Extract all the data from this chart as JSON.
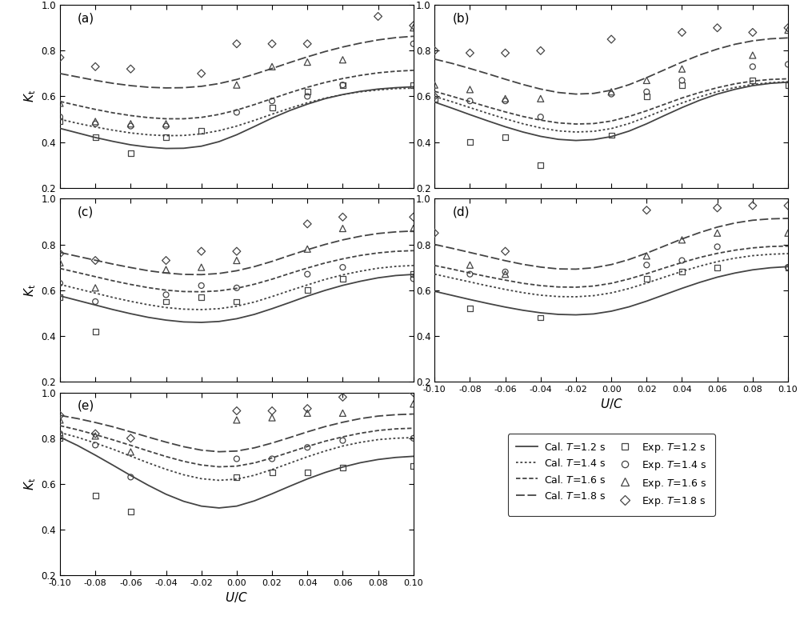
{
  "x_fine": [
    -0.1,
    -0.09,
    -0.08,
    -0.07,
    -0.06,
    -0.05,
    -0.04,
    -0.03,
    -0.02,
    -0.01,
    0.0,
    0.01,
    0.02,
    0.03,
    0.04,
    0.05,
    0.06,
    0.07,
    0.08,
    0.09,
    0.1
  ],
  "ylim": [
    0.2,
    1.0
  ],
  "yticks": [
    0.2,
    0.4,
    0.6,
    0.8,
    1.0
  ],
  "xlim": [
    -0.1,
    0.1
  ],
  "xticks": [
    -0.1,
    -0.08,
    -0.06,
    -0.04,
    -0.02,
    0.0,
    0.02,
    0.04,
    0.06,
    0.08,
    0.1
  ],
  "xtick_labels": [
    "-0.10",
    "-0.08",
    "-0.06",
    "-0.04",
    "-0.02",
    "0.00",
    "0.02",
    "0.04",
    "0.06",
    "0.08",
    "0.10"
  ],
  "panel_labels": [
    "(a)",
    "(b)",
    "(c)",
    "(d)",
    "(e)"
  ],
  "cal_T12_a": [
    0.46,
    0.44,
    0.42,
    0.403,
    0.388,
    0.378,
    0.372,
    0.373,
    0.382,
    0.402,
    0.432,
    0.468,
    0.505,
    0.538,
    0.566,
    0.59,
    0.608,
    0.622,
    0.632,
    0.638,
    0.642
  ],
  "cal_T14_a": [
    0.5,
    0.482,
    0.466,
    0.452,
    0.44,
    0.432,
    0.428,
    0.429,
    0.436,
    0.45,
    0.47,
    0.495,
    0.522,
    0.548,
    0.572,
    0.592,
    0.608,
    0.62,
    0.628,
    0.634,
    0.636
  ],
  "cal_T16_a": [
    0.578,
    0.56,
    0.543,
    0.528,
    0.516,
    0.507,
    0.502,
    0.502,
    0.508,
    0.521,
    0.54,
    0.564,
    0.59,
    0.616,
    0.64,
    0.661,
    0.678,
    0.692,
    0.703,
    0.71,
    0.714
  ],
  "cal_T18_a": [
    0.7,
    0.685,
    0.67,
    0.657,
    0.647,
    0.64,
    0.637,
    0.638,
    0.644,
    0.656,
    0.674,
    0.697,
    0.722,
    0.748,
    0.773,
    0.796,
    0.816,
    0.833,
    0.847,
    0.857,
    0.863
  ],
  "exp_T12_a_x": [
    -0.1,
    -0.08,
    -0.06,
    -0.04,
    -0.02,
    0.02,
    0.04,
    0.06,
    0.1
  ],
  "exp_T12_a": [
    0.49,
    0.42,
    0.35,
    0.42,
    0.45,
    0.55,
    0.62,
    0.65,
    0.65
  ],
  "exp_T14_a_x": [
    -0.1,
    -0.08,
    -0.06,
    -0.04,
    0.0,
    0.02,
    0.04,
    0.06,
    0.1
  ],
  "exp_T14_a": [
    0.51,
    0.48,
    0.47,
    0.47,
    0.53,
    0.58,
    0.6,
    0.65,
    0.83
  ],
  "exp_T16_a_x": [
    -0.1,
    -0.08,
    -0.06,
    -0.04,
    0.0,
    0.02,
    0.04,
    0.06,
    0.1
  ],
  "exp_T16_a": [
    0.57,
    0.49,
    0.48,
    0.48,
    0.65,
    0.73,
    0.75,
    0.76,
    0.9
  ],
  "exp_T18_a_x": [
    -0.1,
    -0.08,
    -0.06,
    -0.02,
    0.0,
    0.02,
    0.04,
    0.08,
    0.1
  ],
  "exp_T18_a": [
    0.77,
    0.73,
    0.72,
    0.7,
    0.83,
    0.83,
    0.83,
    0.95,
    0.91
  ],
  "cal_T12_b": [
    0.575,
    0.548,
    0.52,
    0.493,
    0.467,
    0.444,
    0.425,
    0.412,
    0.407,
    0.411,
    0.424,
    0.448,
    0.48,
    0.516,
    0.551,
    0.583,
    0.61,
    0.631,
    0.647,
    0.657,
    0.662
  ],
  "cal_T14_b": [
    0.6,
    0.576,
    0.551,
    0.526,
    0.502,
    0.48,
    0.462,
    0.449,
    0.444,
    0.447,
    0.459,
    0.481,
    0.51,
    0.541,
    0.571,
    0.598,
    0.621,
    0.639,
    0.652,
    0.66,
    0.664
  ],
  "cal_T16_b": [
    0.622,
    0.6,
    0.577,
    0.554,
    0.532,
    0.512,
    0.496,
    0.484,
    0.479,
    0.481,
    0.492,
    0.512,
    0.537,
    0.565,
    0.593,
    0.617,
    0.638,
    0.655,
    0.667,
    0.674,
    0.677
  ],
  "cal_T18_b": [
    0.763,
    0.744,
    0.722,
    0.699,
    0.675,
    0.652,
    0.632,
    0.617,
    0.61,
    0.613,
    0.627,
    0.651,
    0.682,
    0.716,
    0.75,
    0.781,
    0.807,
    0.828,
    0.843,
    0.852,
    0.856
  ],
  "exp_T12_b_x": [
    -0.1,
    -0.08,
    -0.06,
    -0.04,
    0.0,
    0.02,
    0.04,
    0.08,
    0.1
  ],
  "exp_T12_b": [
    0.59,
    0.4,
    0.42,
    0.3,
    0.43,
    0.6,
    0.65,
    0.67,
    0.65
  ],
  "exp_T14_b_x": [
    -0.1,
    -0.08,
    -0.06,
    -0.04,
    0.0,
    0.02,
    0.04,
    0.08,
    0.1
  ],
  "exp_T14_b": [
    0.6,
    0.58,
    0.58,
    0.51,
    0.61,
    0.62,
    0.67,
    0.73,
    0.74
  ],
  "exp_T16_b_x": [
    -0.1,
    -0.08,
    -0.06,
    -0.04,
    0.0,
    0.02,
    0.04,
    0.08,
    0.1
  ],
  "exp_T16_b": [
    0.65,
    0.63,
    0.59,
    0.59,
    0.62,
    0.67,
    0.72,
    0.78,
    0.89
  ],
  "exp_T18_b_x": [
    -0.1,
    -0.08,
    -0.06,
    -0.04,
    0.0,
    0.04,
    0.06,
    0.08,
    0.1
  ],
  "exp_T18_b": [
    0.8,
    0.79,
    0.79,
    0.8,
    0.85,
    0.88,
    0.9,
    0.88,
    0.9
  ],
  "cal_T12_c": [
    0.575,
    0.555,
    0.535,
    0.515,
    0.497,
    0.481,
    0.469,
    0.461,
    0.459,
    0.463,
    0.475,
    0.494,
    0.519,
    0.546,
    0.574,
    0.599,
    0.621,
    0.639,
    0.654,
    0.664,
    0.669
  ],
  "cal_T14_c": [
    0.625,
    0.606,
    0.587,
    0.568,
    0.551,
    0.536,
    0.524,
    0.517,
    0.515,
    0.519,
    0.53,
    0.548,
    0.572,
    0.598,
    0.623,
    0.647,
    0.667,
    0.683,
    0.696,
    0.704,
    0.708
  ],
  "cal_T16_c": [
    0.695,
    0.677,
    0.659,
    0.641,
    0.625,
    0.611,
    0.6,
    0.594,
    0.593,
    0.597,
    0.608,
    0.626,
    0.648,
    0.673,
    0.697,
    0.719,
    0.737,
    0.752,
    0.763,
    0.77,
    0.773
  ],
  "cal_T18_c": [
    0.765,
    0.748,
    0.731,
    0.714,
    0.699,
    0.685,
    0.675,
    0.669,
    0.668,
    0.673,
    0.685,
    0.703,
    0.726,
    0.752,
    0.777,
    0.8,
    0.82,
    0.836,
    0.848,
    0.855,
    0.859
  ],
  "exp_T12_c_x": [
    -0.1,
    -0.08,
    -0.04,
    -0.02,
    0.0,
    0.04,
    0.06,
    0.1
  ],
  "exp_T12_c": [
    0.57,
    0.42,
    0.55,
    0.57,
    0.55,
    0.6,
    0.65,
    0.67
  ],
  "exp_T14_c_x": [
    -0.1,
    -0.08,
    -0.04,
    -0.02,
    0.0,
    0.04,
    0.06,
    0.1
  ],
  "exp_T14_c": [
    0.63,
    0.55,
    0.58,
    0.62,
    0.61,
    0.67,
    0.7,
    0.65
  ],
  "exp_T16_c_x": [
    -0.1,
    -0.08,
    -0.04,
    -0.02,
    0.0,
    0.04,
    0.06,
    0.1
  ],
  "exp_T16_c": [
    0.72,
    0.61,
    0.69,
    0.7,
    0.73,
    0.78,
    0.87,
    0.87
  ],
  "exp_T18_c_x": [
    -0.1,
    -0.08,
    -0.04,
    -0.02,
    0.0,
    0.04,
    0.06,
    0.1
  ],
  "exp_T18_c": [
    0.76,
    0.73,
    0.73,
    0.77,
    0.77,
    0.89,
    0.92,
    0.92
  ],
  "cal_T12_d": [
    0.595,
    0.577,
    0.559,
    0.542,
    0.526,
    0.512,
    0.501,
    0.494,
    0.492,
    0.496,
    0.508,
    0.527,
    0.552,
    0.58,
    0.608,
    0.634,
    0.657,
    0.675,
    0.689,
    0.698,
    0.703
  ],
  "cal_T14_d": [
    0.67,
    0.653,
    0.636,
    0.619,
    0.603,
    0.589,
    0.578,
    0.572,
    0.571,
    0.576,
    0.588,
    0.607,
    0.631,
    0.657,
    0.682,
    0.705,
    0.725,
    0.74,
    0.751,
    0.757,
    0.76
  ],
  "cal_T16_d": [
    0.708,
    0.692,
    0.675,
    0.659,
    0.644,
    0.63,
    0.62,
    0.614,
    0.613,
    0.618,
    0.63,
    0.649,
    0.672,
    0.697,
    0.721,
    0.743,
    0.761,
    0.775,
    0.785,
    0.791,
    0.793
  ],
  "cal_T18_d": [
    0.8,
    0.783,
    0.765,
    0.747,
    0.729,
    0.713,
    0.701,
    0.693,
    0.692,
    0.698,
    0.712,
    0.734,
    0.762,
    0.793,
    0.824,
    0.852,
    0.876,
    0.894,
    0.906,
    0.912,
    0.914
  ],
  "exp_T12_d_x": [
    -0.08,
    -0.04,
    0.02,
    0.04,
    0.06,
    0.1
  ],
  "exp_T12_d": [
    0.52,
    0.48,
    0.65,
    0.68,
    0.7,
    0.7
  ],
  "exp_T14_d_x": [
    -0.08,
    -0.06,
    0.02,
    0.04,
    0.06,
    0.1
  ],
  "exp_T14_d": [
    0.67,
    0.68,
    0.71,
    0.73,
    0.79,
    0.7
  ],
  "exp_T16_d_x": [
    -0.08,
    -0.06,
    0.02,
    0.04,
    0.06,
    0.1
  ],
  "exp_T16_d": [
    0.71,
    0.67,
    0.75,
    0.82,
    0.85,
    0.85
  ],
  "exp_T18_d_x": [
    -0.1,
    -0.06,
    0.02,
    0.06,
    0.08,
    0.1
  ],
  "exp_T18_d": [
    0.85,
    0.77,
    0.95,
    0.96,
    0.97,
    0.97
  ],
  "cal_T12_e": [
    0.805,
    0.768,
    0.726,
    0.682,
    0.637,
    0.594,
    0.555,
    0.524,
    0.503,
    0.495,
    0.503,
    0.526,
    0.557,
    0.59,
    0.622,
    0.65,
    0.674,
    0.693,
    0.707,
    0.716,
    0.721
  ],
  "cal_T14_e": [
    0.825,
    0.804,
    0.779,
    0.752,
    0.722,
    0.692,
    0.664,
    0.64,
    0.623,
    0.616,
    0.621,
    0.638,
    0.663,
    0.691,
    0.719,
    0.744,
    0.766,
    0.782,
    0.794,
    0.8,
    0.803
  ],
  "cal_T16_e": [
    0.855,
    0.837,
    0.816,
    0.793,
    0.769,
    0.744,
    0.72,
    0.699,
    0.683,
    0.675,
    0.678,
    0.692,
    0.714,
    0.739,
    0.764,
    0.787,
    0.806,
    0.822,
    0.834,
    0.841,
    0.844
  ],
  "cal_T18_e": [
    0.9,
    0.886,
    0.869,
    0.85,
    0.828,
    0.805,
    0.783,
    0.763,
    0.748,
    0.741,
    0.744,
    0.758,
    0.779,
    0.803,
    0.828,
    0.851,
    0.87,
    0.886,
    0.897,
    0.903,
    0.906
  ],
  "exp_T12_e_x": [
    -0.1,
    -0.08,
    -0.06,
    0.0,
    0.02,
    0.04,
    0.06,
    0.1
  ],
  "exp_T12_e": [
    0.8,
    0.55,
    0.48,
    0.63,
    0.65,
    0.65,
    0.67,
    0.68
  ],
  "exp_T14_e_x": [
    -0.1,
    -0.08,
    -0.06,
    0.0,
    0.02,
    0.04,
    0.06,
    0.1
  ],
  "exp_T14_e": [
    0.82,
    0.77,
    0.63,
    0.71,
    0.71,
    0.76,
    0.79,
    0.8
  ],
  "exp_T16_e_x": [
    -0.1,
    -0.08,
    -0.06,
    0.0,
    0.02,
    0.04,
    0.06,
    0.1
  ],
  "exp_T16_e": [
    0.88,
    0.81,
    0.74,
    0.88,
    0.89,
    0.91,
    0.91,
    0.95
  ],
  "exp_T18_e_x": [
    -0.1,
    -0.08,
    -0.06,
    0.0,
    0.02,
    0.04,
    0.06,
    0.1
  ],
  "exp_T18_e": [
    0.9,
    0.82,
    0.8,
    0.92,
    0.92,
    0.93,
    0.98,
    1.0
  ],
  "line_color": "#444444",
  "lw": 1.3,
  "marker_size": 25,
  "marker_lw": 0.9
}
